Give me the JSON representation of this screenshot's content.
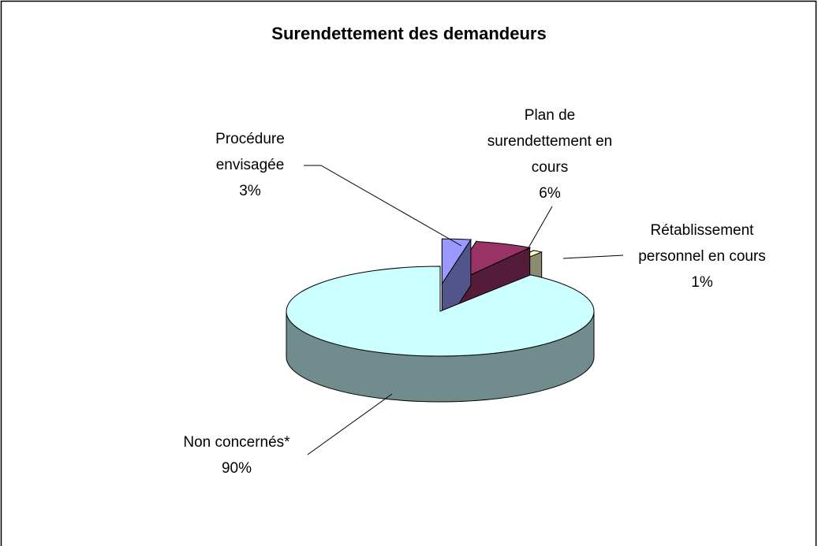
{
  "chart_data": {
    "type": "pie",
    "title": "Surendettement des demandeurs",
    "categories": [
      "Procédure envisagée",
      "Plan de surendettement en cours",
      "Rétablissement personnel en cours",
      "Non concernés*"
    ],
    "values": [
      3,
      6,
      1,
      90
    ],
    "value_labels": [
      "3%",
      "6%",
      "1%",
      "90%"
    ],
    "colors": [
      "#9999ff",
      "#993366",
      "#ffffcc",
      "#ccffff"
    ],
    "three_d": true
  }
}
